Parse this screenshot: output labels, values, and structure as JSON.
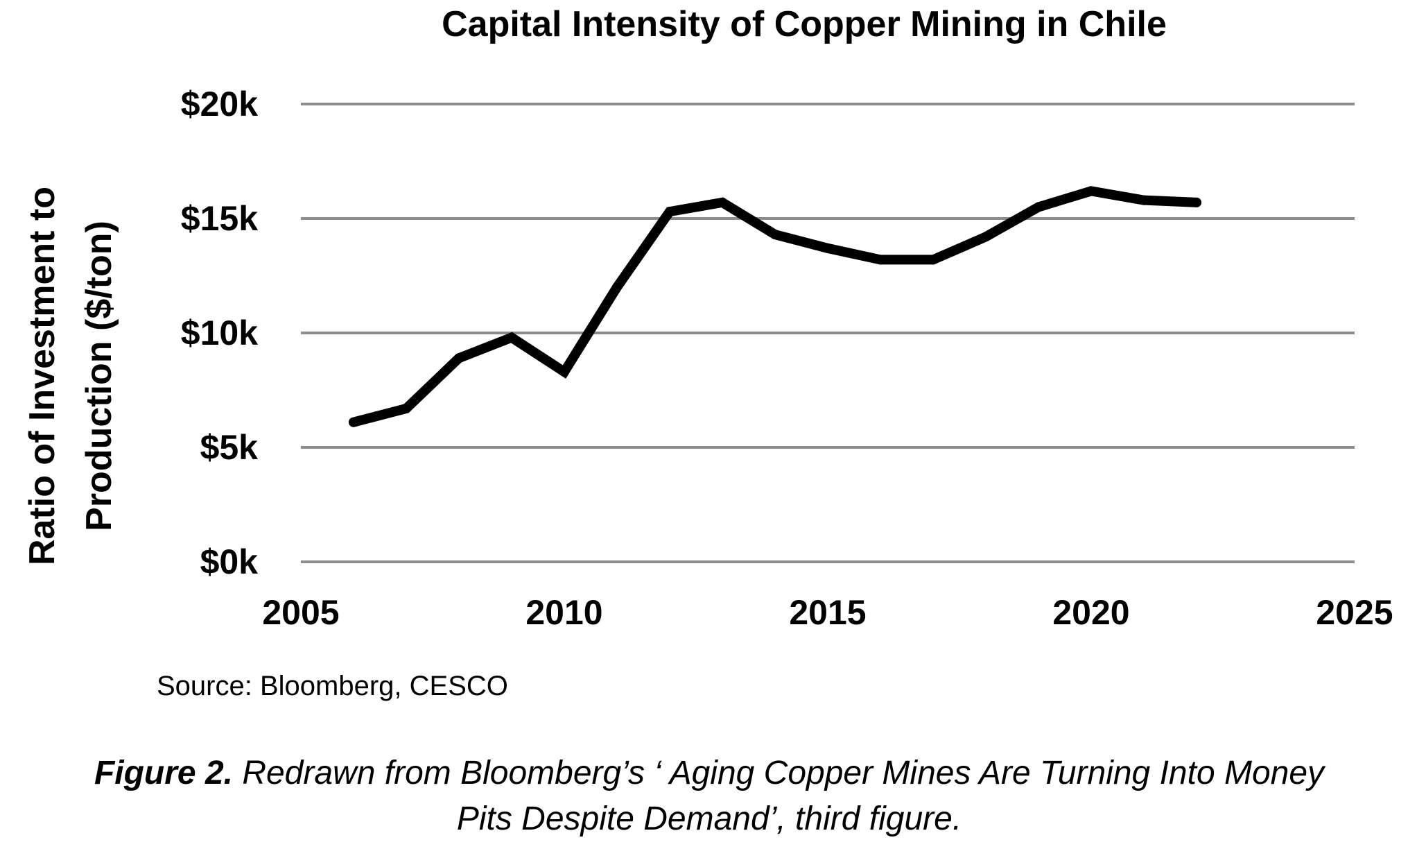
{
  "chart_data": {
    "type": "line",
    "title": "Capital Intensity of Copper Mining in Chile",
    "ylabel_lines": [
      "Ratio of Investment to",
      "Production ($/ton)"
    ],
    "xlabel": "",
    "xlim": [
      2005,
      2025
    ],
    "ylim": [
      0,
      20000
    ],
    "x_ticks": [
      2005,
      2010,
      2015,
      2020,
      2025
    ],
    "x_tick_labels": [
      "2005",
      "2010",
      "2015",
      "2020",
      "2025"
    ],
    "y_ticks": [
      0,
      5000,
      10000,
      15000,
      20000
    ],
    "y_tick_labels": [
      "$0k",
      "$5k",
      "$10k",
      "$15k",
      "$20k"
    ],
    "grid": true,
    "series": [
      {
        "x": [
          2006,
          2007,
          2008,
          2009,
          2010,
          2011,
          2012,
          2013,
          2014,
          2015,
          2016,
          2017,
          2018,
          2019,
          2020,
          2021,
          2022
        ],
        "values": [
          6100,
          6700,
          8900,
          9800,
          8300,
          12000,
          15300,
          15700,
          14300,
          13700,
          13200,
          13200,
          14200,
          15500,
          16200,
          15800,
          15700
        ],
        "color": "#000000"
      }
    ]
  },
  "source": "Source:  Bloomberg, CESCO",
  "caption": {
    "label": "Figure 2.",
    "line1": " Redrawn from Bloomberg’s ‘ Aging Copper Mines Are Turning Into Money",
    "line2": "Pits Despite Demand’, third figure."
  }
}
